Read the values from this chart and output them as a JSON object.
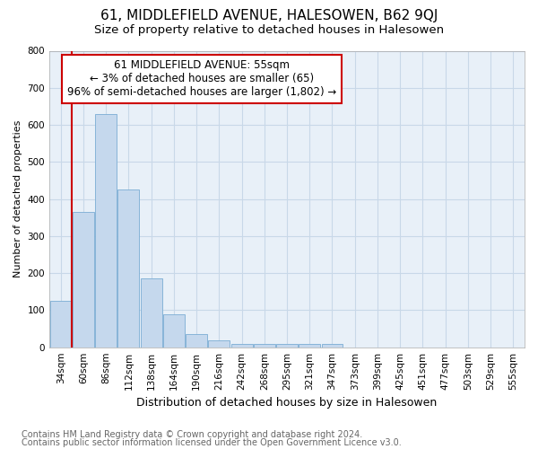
{
  "title": "61, MIDDLEFIELD AVENUE, HALESOWEN, B62 9QJ",
  "subtitle": "Size of property relative to detached houses in Halesowen",
  "xlabel": "Distribution of detached houses by size in Halesowen",
  "ylabel": "Number of detached properties",
  "categories": [
    "34sqm",
    "60sqm",
    "86sqm",
    "112sqm",
    "138sqm",
    "164sqm",
    "190sqm",
    "216sqm",
    "242sqm",
    "268sqm",
    "295sqm",
    "321sqm",
    "347sqm",
    "373sqm",
    "399sqm",
    "425sqm",
    "451sqm",
    "477sqm",
    "503sqm",
    "529sqm",
    "555sqm"
  ],
  "values": [
    125,
    365,
    630,
    425,
    185,
    88,
    35,
    18,
    10,
    8,
    8,
    8,
    8,
    0,
    0,
    0,
    0,
    0,
    0,
    0,
    0
  ],
  "bar_color": "#c5d8ed",
  "bar_edge_color": "#7badd4",
  "annotation_box_color": "#ffffff",
  "annotation_border_color": "#cc0000",
  "vline_color": "#cc0000",
  "grid_color": "#c8d8e8",
  "bg_color": "#e8f0f8",
  "footnote_line1": "Contains HM Land Registry data © Crown copyright and database right 2024.",
  "footnote_line2": "Contains public sector information licensed under the Open Government Licence v3.0.",
  "annotation_line1": "61 MIDDLEFIELD AVENUE: 55sqm",
  "annotation_line2": "← 3% of detached houses are smaller (65)",
  "annotation_line3": "96% of semi-detached houses are larger (1,802) →",
  "vline_x_bar_index": 1,
  "ylim": [
    0,
    800
  ],
  "yticks": [
    0,
    100,
    200,
    300,
    400,
    500,
    600,
    700,
    800
  ],
  "title_fontsize": 11,
  "subtitle_fontsize": 9.5,
  "annotation_fontsize": 8.5,
  "axis_fontsize": 8,
  "tick_fontsize": 7.5,
  "xlabel_fontsize": 9,
  "ylabel_fontsize": 8,
  "footnote_fontsize": 7
}
